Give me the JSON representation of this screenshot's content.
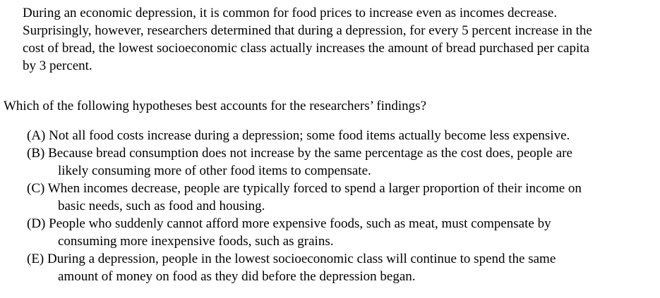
{
  "passage": {
    "lines": [
      "During an economic depression, it is common for food prices to increase even as incomes decrease.",
      "Surprisingly, however, researchers determined that during a depression, for every 5 percent increase in the",
      "cost of bread, the lowest socioeconomic class actually increases the amount of bread purchased per capita",
      "by 3 percent."
    ]
  },
  "question": "Which of the following hypotheses best accounts for the researchers’ findings?",
  "choices": [
    {
      "lines": [
        "(A) Not all food costs increase during a depression; some food items actually become less expensive."
      ]
    },
    {
      "lines": [
        "(B) Because bread consumption does not increase by the same percentage as the cost does, people are",
        "likely consuming more of other food items to compensate."
      ]
    },
    {
      "lines": [
        "(C) When incomes decrease, people are typically forced to spend a larger proportion of their income on",
        "basic needs, such as food and housing."
      ]
    },
    {
      "lines": [
        "(D) People who suddenly cannot afford more expensive foods, such as meat, must compensate by",
        "consuming more inexpensive foods, such as grains."
      ]
    },
    {
      "lines": [
        "(E) During a depression, people in the lowest socioeconomic class will continue to spend the same",
        "amount of money on food as they did before the depression began."
      ]
    }
  ]
}
